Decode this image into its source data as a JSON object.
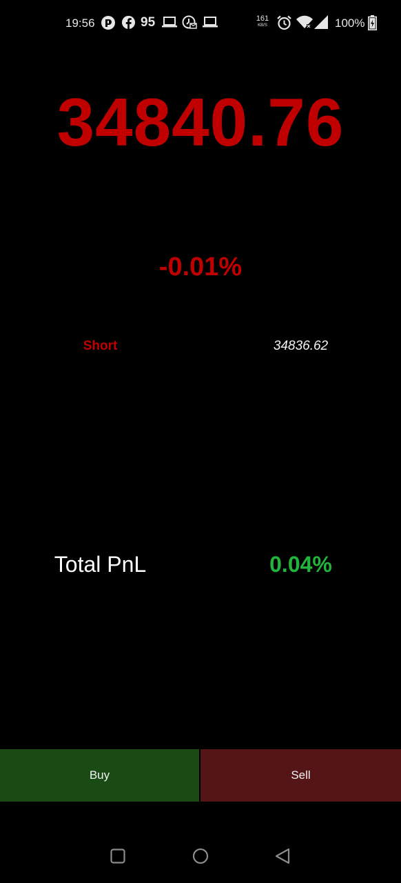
{
  "status_bar": {
    "time": "19:56",
    "notification_count": "95",
    "network_speed_value": "161",
    "network_speed_unit": "KB/S",
    "battery": "100%",
    "icons": [
      "app-icon",
      "facebook-icon",
      "laptop-icon",
      "mail-clock-icon",
      "laptop-icon",
      "alarm-icon",
      "wifi-icon",
      "signal-icon",
      "battery-charging-icon"
    ]
  },
  "ticker": {
    "price": "34840.76",
    "change_percent": "-0.01%"
  },
  "position": {
    "side": "Short",
    "entry_price": "34836.62"
  },
  "pnl": {
    "label": "Total PnL",
    "value": "0.04%"
  },
  "actions": {
    "buy_label": "Buy",
    "sell_label": "Sell"
  },
  "nav_bar": {
    "icons": [
      "recents-icon",
      "home-icon",
      "back-icon"
    ]
  },
  "colors": {
    "background": "#000000",
    "negative": "#c00000",
    "positive": "#22b43c",
    "buy_button": "#1a4b15",
    "sell_button": "#551517"
  }
}
